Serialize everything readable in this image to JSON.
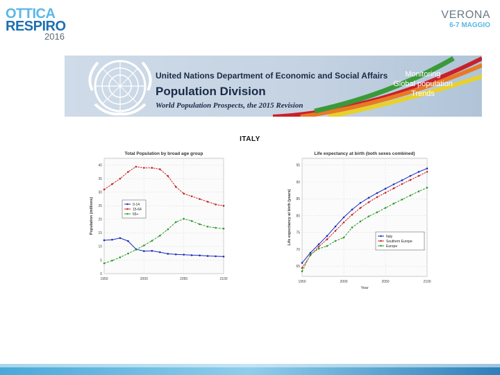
{
  "header": {
    "logo": {
      "line1": "OTTICA",
      "line2": "RESPIRO",
      "line3": "2016"
    },
    "event": {
      "city": "VERONA",
      "date": "6-7 MAGGIO"
    }
  },
  "banner": {
    "org_line": "United Nations  Department of Economic and Social Affairs",
    "division": "Population Division",
    "publication": "World Population Prospects, the 2015 Revision",
    "right_text": [
      "Monitoring",
      "Global population",
      "Trends"
    ],
    "colors": {
      "green": "#3a9a3a",
      "yellow": "#e8d12a",
      "orange": "#e87a24",
      "red": "#c8202c"
    }
  },
  "country_title": "ITALY",
  "chart_data": [
    {
      "type": "line",
      "title": "Total Population by broad age group",
      "xlabel": "",
      "ylabel": "Population (millions)",
      "xlim": [
        1950,
        2100
      ],
      "ylim": [
        0,
        42.5
      ],
      "x_ticks": [
        1950,
        2000,
        2050,
        2100
      ],
      "y_ticks": [
        0,
        5,
        10,
        15,
        20,
        25,
        30,
        35,
        40
      ],
      "grid": true,
      "legend_position": "center-left",
      "series": [
        {
          "name": "0-14",
          "color": "#1a2ac0",
          "x": [
            1950,
            1960,
            1970,
            1980,
            1990,
            2000,
            2010,
            2020,
            2030,
            2040,
            2050,
            2060,
            2070,
            2080,
            2090,
            2100
          ],
          "y": [
            12.3,
            12.5,
            13.1,
            12.0,
            9.0,
            8.3,
            8.4,
            7.9,
            7.3,
            7.1,
            7.0,
            6.8,
            6.7,
            6.5,
            6.4,
            6.3
          ]
        },
        {
          "name": "15-64",
          "color": "#c82020",
          "x": [
            1950,
            1960,
            1970,
            1980,
            1990,
            2000,
            2010,
            2020,
            2030,
            2040,
            2050,
            2060,
            2070,
            2080,
            2090,
            2100
          ],
          "y": [
            31.0,
            33.0,
            35.0,
            37.5,
            39.4,
            39.0,
            39.0,
            38.5,
            36.0,
            32.0,
            29.5,
            28.5,
            27.5,
            26.5,
            25.5,
            25.0
          ]
        },
        {
          "name": "65+",
          "color": "#2a9a2a",
          "x": [
            1950,
            1960,
            1970,
            1980,
            1990,
            2000,
            2010,
            2020,
            2030,
            2040,
            2050,
            2060,
            2070,
            2080,
            2090,
            2100
          ],
          "y": [
            3.8,
            4.8,
            6.0,
            7.4,
            8.8,
            10.4,
            12.1,
            14.0,
            16.3,
            19.0,
            20.2,
            19.4,
            18.2,
            17.3,
            16.9,
            16.6
          ]
        }
      ]
    },
    {
      "type": "line",
      "title": "Life expectancy at birth (both sexes combined)",
      "xlabel": "Year",
      "ylabel": "Life expectancy at birth (years)",
      "xlim": [
        1950,
        2100
      ],
      "ylim": [
        62,
        97
      ],
      "x_ticks": [
        1950,
        2000,
        2050,
        2100
      ],
      "y_ticks": [
        65,
        70,
        75,
        80,
        85,
        90,
        95
      ],
      "grid": true,
      "legend_position": "bottom-right",
      "series": [
        {
          "name": "Italy",
          "color": "#1a2ac0",
          "x": [
            1950,
            1960,
            1970,
            1980,
            1990,
            2000,
            2010,
            2020,
            2030,
            2040,
            2050,
            2060,
            2070,
            2080,
            2090,
            2100
          ],
          "y": [
            66.0,
            69.0,
            71.5,
            74.0,
            76.8,
            79.5,
            81.8,
            83.8,
            85.3,
            86.7,
            88.0,
            89.3,
            90.5,
            91.8,
            93.0,
            94.0
          ]
        },
        {
          "name": "Southern Europe",
          "color": "#c82020",
          "x": [
            1950,
            1960,
            1970,
            1980,
            1990,
            2000,
            2010,
            2020,
            2030,
            2040,
            2050,
            2060,
            2070,
            2080,
            2090,
            2100
          ],
          "y": [
            64.5,
            68.3,
            70.8,
            73.0,
            75.5,
            78.0,
            80.3,
            82.3,
            84.0,
            85.5,
            86.8,
            88.1,
            89.4,
            90.6,
            91.8,
            93.0
          ]
        },
        {
          "name": "Europe",
          "color": "#2a9a2a",
          "x": [
            1950,
            1960,
            1970,
            1980,
            1990,
            2000,
            2010,
            2020,
            2030,
            2040,
            2050,
            2060,
            2070,
            2080,
            2090,
            2100
          ],
          "y": [
            63.5,
            68.5,
            70.2,
            71.0,
            72.5,
            73.5,
            76.5,
            78.3,
            79.8,
            81.0,
            82.3,
            83.6,
            84.8,
            86.0,
            87.2,
            88.3
          ]
        }
      ]
    }
  ]
}
